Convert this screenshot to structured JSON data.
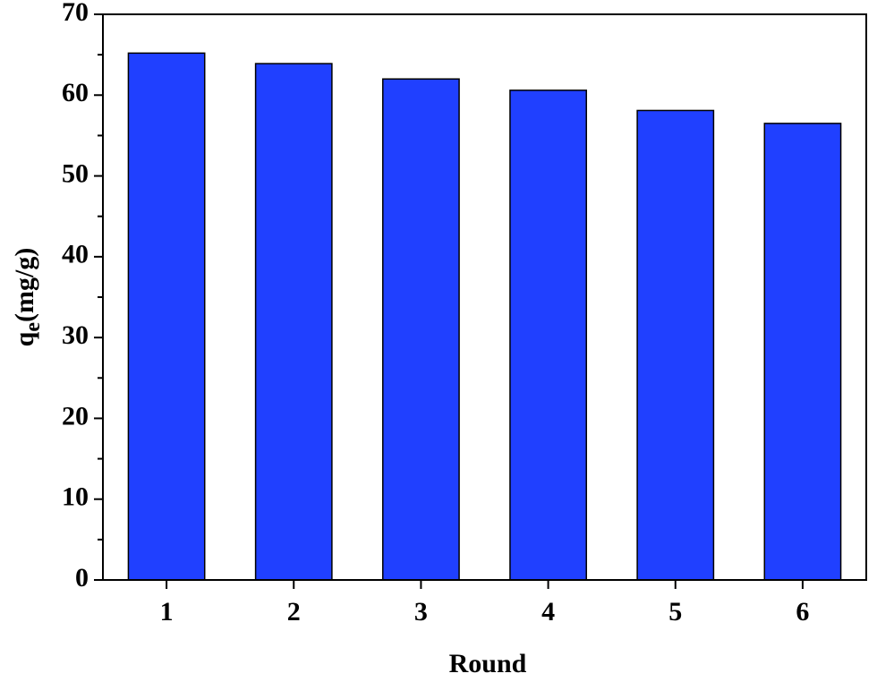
{
  "chart_data": {
    "type": "bar",
    "xlabel": "Round",
    "ylabel": {
      "base": "q",
      "sub": "e",
      "rest": "(mg/g)"
    },
    "categories": [
      "1",
      "2",
      "3",
      "4",
      "5",
      "6"
    ],
    "values": [
      65.2,
      63.9,
      62.0,
      60.6,
      58.1,
      56.5
    ],
    "color": "#2040ff",
    "ylim": [
      0,
      70
    ],
    "yticks": [
      0,
      10,
      20,
      30,
      40,
      50,
      60,
      70
    ],
    "minor_yticks": [
      5,
      15,
      25,
      35,
      45,
      55,
      65
    ],
    "grid": false
  }
}
